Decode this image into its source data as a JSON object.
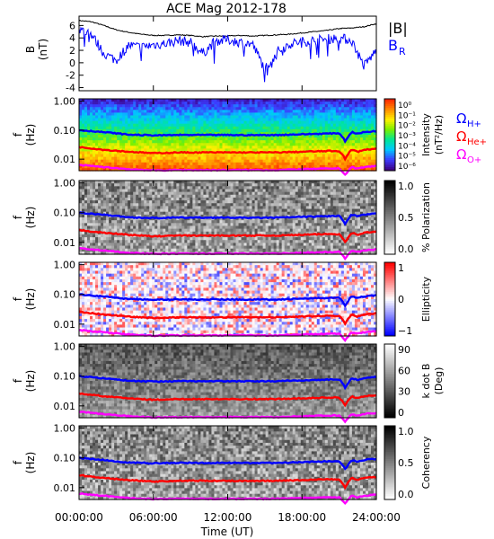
{
  "figure": {
    "title": "ACE Mag 2012-178",
    "xlabel": "Time (UT)",
    "xticks": [
      "00:00:00",
      "06:00:00",
      "12:00:00",
      "18:00:00",
      "24:00:00"
    ]
  },
  "legend_labels": {
    "b_total": "|B|",
    "b_r": "B",
    "b_r_sub": "R",
    "omega_h": "Ω",
    "omega_h_sub": "H+",
    "omega_he": "Ω",
    "omega_he_sub": "He+",
    "omega_o": "Ω",
    "omega_o_sub": "O+"
  },
  "colors": {
    "b_total": "#000000",
    "b_r": "#0000ff",
    "omega_h": "#0000ff",
    "omega_he": "#ff0000",
    "omega_o": "#ff00ff"
  },
  "chart_data": [
    {
      "type": "line",
      "panel": "field",
      "ylabel": "B",
      "yunit": "(nT)",
      "ylim": [
        -4.5,
        7.5
      ],
      "yticks": [
        "6",
        "4",
        "2",
        "0",
        "-2",
        "-4"
      ],
      "x_hours": [
        0,
        1,
        2,
        3,
        4,
        5,
        6,
        7,
        8,
        9,
        10,
        11,
        12,
        13,
        14,
        15,
        16,
        17,
        18,
        19,
        20,
        21,
        22,
        23,
        24
      ],
      "series": [
        {
          "name": "|B|",
          "values": [
            6.8,
            6.6,
            6.0,
            5.3,
            4.9,
            4.6,
            4.4,
            4.4,
            4.5,
            4.4,
            4.2,
            4.3,
            4.3,
            4.4,
            4.3,
            4.4,
            4.5,
            4.6,
            4.8,
            5.0,
            5.2,
            5.5,
            5.6,
            5.8,
            6.3
          ]
        },
        {
          "name": "B_R",
          "values": [
            5.4,
            4.6,
            1.5,
            0.4,
            2.8,
            2.5,
            2.9,
            3.1,
            3.6,
            3.3,
            1.5,
            3.5,
            3.7,
            3.3,
            3.0,
            -1.0,
            1.8,
            3.0,
            3.4,
            3.6,
            3.8,
            4.0,
            3.6,
            -0.5,
            2.0
          ]
        }
      ]
    },
    {
      "type": "heatmap",
      "panel": "power",
      "ylabel": "f",
      "yunit": "(Hz)",
      "ylim": [
        0.004,
        1.2
      ],
      "yscale": "log",
      "yticks": [
        "1.00",
        "0.10",
        "0.01"
      ],
      "colorbar": {
        "label": "Intensity",
        "unit": "(nT²/Hz)",
        "ticks": [
          "10⁰",
          "10⁻¹",
          "10⁻²",
          "10⁻³",
          "10⁻⁴",
          "10⁻⁵",
          "10⁻⁶"
        ],
        "palette": "rainbow"
      }
    },
    {
      "type": "heatmap",
      "panel": "polarization",
      "ylabel": "f",
      "yunit": "(Hz)",
      "ylim": [
        0.004,
        1.2
      ],
      "yscale": "log",
      "yticks": [
        "1.00",
        "0.10",
        "0.01"
      ],
      "colorbar": {
        "label": "% Polarization",
        "ticks": [
          "1.0",
          "0.5",
          "0.0"
        ],
        "palette": "gray"
      }
    },
    {
      "type": "heatmap",
      "panel": "ellipticity",
      "ylabel": "f",
      "yunit": "(Hz)",
      "ylim": [
        0.004,
        1.2
      ],
      "yscale": "log",
      "yticks": [
        "1.00",
        "0.10",
        "0.01"
      ],
      "colorbar": {
        "label": "Ellipticity",
        "ticks": [
          "1",
          "0",
          "−1"
        ],
        "palette": "redblue"
      }
    },
    {
      "type": "heatmap",
      "panel": "kdotb",
      "ylabel": "f",
      "yunit": "(Hz)",
      "ylim": [
        0.004,
        1.2
      ],
      "yscale": "log",
      "yticks": [
        "1.00",
        "0.10",
        "0.01"
      ],
      "colorbar": {
        "label": "k dot B",
        "unit": "(Deg)",
        "ticks": [
          "90",
          "60",
          "30",
          "0"
        ],
        "palette": "gray_inv"
      }
    },
    {
      "type": "heatmap",
      "panel": "coherency",
      "ylabel": "f",
      "yunit": "(Hz)",
      "ylim": [
        0.004,
        1.2
      ],
      "yscale": "log",
      "yticks": [
        "1.00",
        "0.10",
        "0.01"
      ],
      "colorbar": {
        "label": "Coherency",
        "ticks": [
          "1.0",
          "0.5",
          "0.0"
        ],
        "palette": "gray"
      }
    },
    {
      "type": "line",
      "panel": "gyrofrequencies",
      "ylim": [
        0.004,
        1.2
      ],
      "yscale": "log",
      "x_hours": [
        0,
        2,
        4,
        6,
        8,
        10,
        12,
        14,
        16,
        18,
        20,
        21,
        21.5,
        22,
        22.5,
        23,
        24
      ],
      "series": [
        {
          "name": "Ω H+",
          "values": [
            0.1,
            0.085,
            0.07,
            0.066,
            0.068,
            0.068,
            0.068,
            0.067,
            0.068,
            0.072,
            0.076,
            0.078,
            0.04,
            0.085,
            0.075,
            0.085,
            0.093
          ]
        },
        {
          "name": "Ω He+",
          "values": [
            0.026,
            0.021,
            0.018,
            0.016,
            0.017,
            0.017,
            0.017,
            0.017,
            0.017,
            0.018,
            0.019,
            0.019,
            0.01,
            0.021,
            0.018,
            0.021,
            0.023
          ]
        },
        {
          "name": "Ω O+",
          "values": [
            0.0063,
            0.0053,
            0.0045,
            0.0041,
            0.0042,
            0.0042,
            0.0042,
            0.0042,
            0.0042,
            0.0045,
            0.0047,
            0.0048,
            0.0028,
            0.0053,
            0.0047,
            0.0053,
            0.0058
          ]
        }
      ]
    }
  ]
}
